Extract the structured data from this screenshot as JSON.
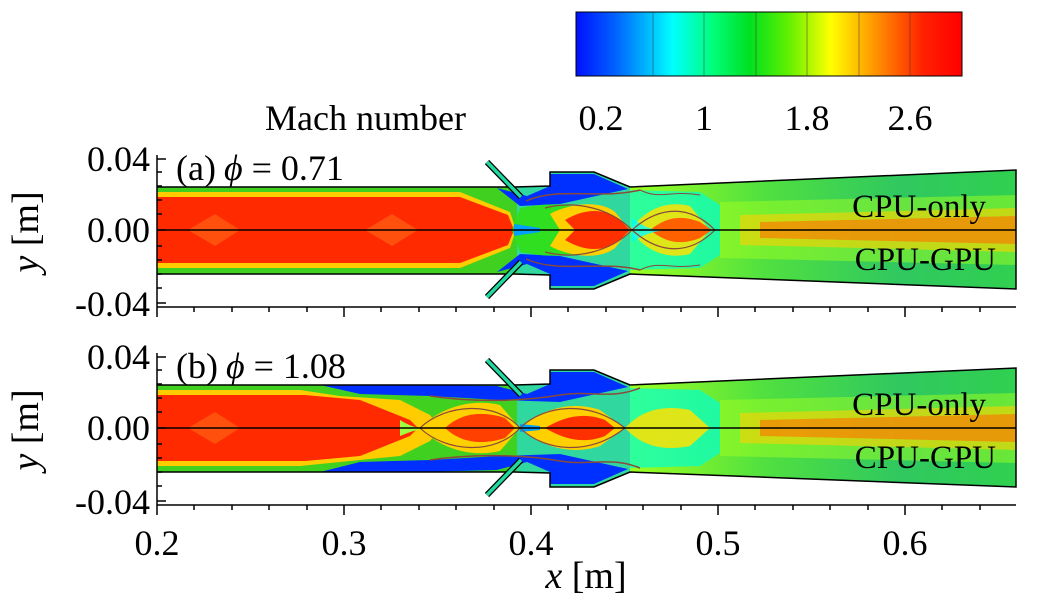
{
  "colorbar": {
    "title": "Mach number",
    "tick_labels": [
      "0.2",
      "1",
      "1.8",
      "2.6"
    ],
    "tick_values": [
      0.2,
      1.0,
      1.8,
      2.6
    ],
    "range": [
      0.0,
      3.0
    ],
    "colors": [
      "#0000ff",
      "#0090ff",
      "#00ffff",
      "#00ff90",
      "#00e000",
      "#90ff00",
      "#ffff00",
      "#ff9000",
      "#ff2000",
      "#ff0000"
    ]
  },
  "panels": [
    {
      "id": "a",
      "label": "(a)",
      "phi_symbol": "ϕ",
      "phi_text": " = 0.71",
      "phi": 0.71,
      "top_label": "CPU-only",
      "bottom_label": "CPU-GPU"
    },
    {
      "id": "b",
      "label": "(b)",
      "phi_symbol": "ϕ",
      "phi_text": " = 1.08",
      "phi": 1.08,
      "top_label": "CPU-only",
      "bottom_label": "CPU-GPU"
    }
  ],
  "axes": {
    "x": {
      "label_var": "x",
      "label_unit": " [m]",
      "range": [
        0.2,
        0.66
      ],
      "tick_labels": [
        "0.2",
        "0.3",
        "0.4",
        "0.5",
        "0.6"
      ],
      "ticks": [
        0.2,
        0.3,
        0.4,
        0.5,
        0.6
      ]
    },
    "y": {
      "label_var": "y",
      "label_unit": " [m]",
      "range": [
        -0.04,
        0.04
      ],
      "tick_labels": [
        "0.04",
        "0.00",
        "-0.04"
      ],
      "ticks": [
        0.04,
        0.0,
        -0.04
      ]
    }
  },
  "colors": {
    "axis": "#000000",
    "wall": "#000000",
    "centerline": "#000000",
    "contour_line": "#8a4a3a"
  }
}
